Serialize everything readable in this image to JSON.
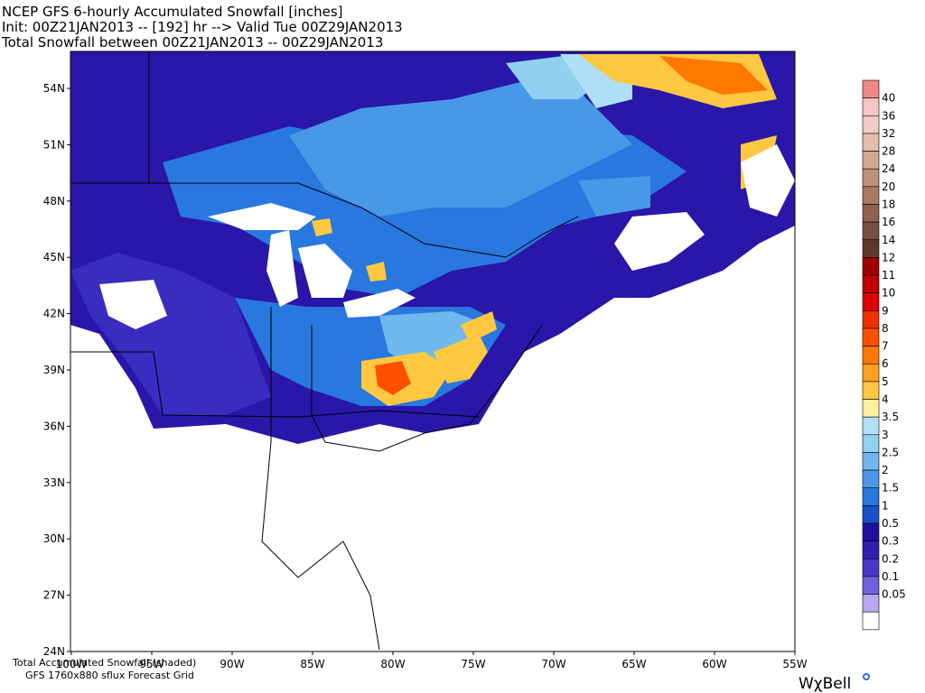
{
  "header": {
    "lines": [
      "NCEP GFS 6-hourly Accumulated Snowfall [inches]",
      "Init: 00Z21JAN2013 -- [192] hr --> Valid Tue 00Z29JAN2013",
      "Total Snowfall between 00Z21JAN2013 -- 00Z29JAN2013"
    ]
  },
  "map": {
    "lat_labels": [
      "54N",
      "51N",
      "48N",
      "45N",
      "42N",
      "39N",
      "36N",
      "33N",
      "30N",
      "27N",
      "24N"
    ],
    "lon_labels": [
      "100W",
      "95W",
      "90W",
      "85W",
      "80W",
      "75W",
      "70W",
      "65W",
      "60W",
      "55W"
    ]
  },
  "colorbar": {
    "labels": [
      "40",
      "36",
      "32",
      "28",
      "24",
      "20",
      "18",
      "16",
      "14",
      "12",
      "11",
      "10",
      "9",
      "8",
      "7",
      "6",
      "5",
      "4",
      "3.5",
      "3",
      "2.5",
      "2",
      "1.5",
      "1",
      "0.5",
      "0.3",
      "0.2",
      "0.1",
      "0.05"
    ],
    "colors": [
      "#f08888",
      "#f8c4c4",
      "#f0ccc4",
      "#e2bcac",
      "#d2a892",
      "#c0907a",
      "#a87862",
      "#906050",
      "#785040",
      "#603828",
      "#a00000",
      "#c00000",
      "#e00000",
      "#f03000",
      "#ff5000",
      "#ff7800",
      "#ffa020",
      "#ffc840",
      "#fff0a0",
      "#b0e0f8",
      "#90d0f0",
      "#70b8f0",
      "#4898e8",
      "#2878e0",
      "#1850c8",
      "#2010a0",
      "#3020b0",
      "#4838c8",
      "#7060e0",
      "#b8a8f0",
      "#ffffff"
    ]
  },
  "footer": {
    "line1": "Total Accumulated Snowfall (shaded)",
    "line2": "GFS 1760x880 sflux Forecast Grid",
    "logo": "WχBell"
  }
}
